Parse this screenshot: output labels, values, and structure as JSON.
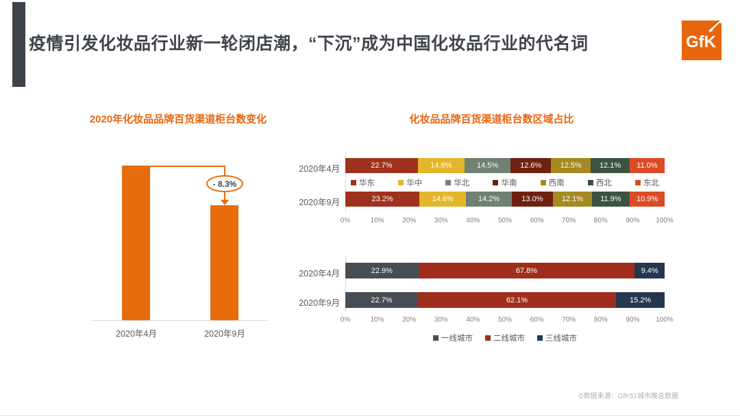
{
  "slide": {
    "title": "疫情引发化妆品行业新一轮闭店潮，“下沉”成为中国化妆品行业的代名词",
    "logo_text": "GfK",
    "footer": "©数据来源：GfK51城市推总数据",
    "accent_color": "#E66C0C",
    "title_color": "#3F444B"
  },
  "chart_data": [
    {
      "type": "bar",
      "title": "2020年化妆品品牌百货渠道柜台数变化",
      "categories": [
        "2020年4月",
        "2020年9月"
      ],
      "values": [
        null,
        null
      ],
      "change_pct": -8.3,
      "annotations": [
        "- 8.3%"
      ],
      "bar_color": "#E66C0C",
      "note": "absolute counter numbers not shown; only -8.3% change labeled"
    },
    {
      "type": "stacked-bar-horizontal",
      "title": "化妆品品牌百货渠道柜台数区域占比",
      "categories": [
        "2020年4月",
        "2020年9月"
      ],
      "series": [
        {
          "name": "华东",
          "color": "#A0311C",
          "values": [
            22.7,
            23.2
          ]
        },
        {
          "name": "华中",
          "color": "#E3B72B",
          "values": [
            14.6,
            14.6
          ]
        },
        {
          "name": "华北",
          "color": "#6F8171",
          "values": [
            14.5,
            14.2
          ]
        },
        {
          "name": "华南",
          "color": "#70200F",
          "values": [
            12.6,
            13.0
          ]
        },
        {
          "name": "西南",
          "color": "#A48A20",
          "values": [
            12.5,
            12.1
          ]
        },
        {
          "name": "西北",
          "color": "#3C5342",
          "values": [
            12.1,
            11.9
          ]
        },
        {
          "name": "东北",
          "color": "#DC4B26",
          "values": [
            11.0,
            10.9
          ]
        }
      ],
      "axis_ticks": [
        "0%",
        "10%",
        "20%",
        "30%",
        "40%",
        "50%",
        "60%",
        "70%",
        "80%",
        "90%",
        "100%"
      ],
      "xlim": [
        0,
        100
      ],
      "legend_position": "between-rows",
      "grid": false
    },
    {
      "type": "stacked-bar-horizontal",
      "title": "",
      "categories": [
        "2020年4月",
        "2020年9月"
      ],
      "series": [
        {
          "name": "一线城市",
          "color": "#474D55",
          "values": [
            22.9,
            22.7
          ]
        },
        {
          "name": "二线城市",
          "color": "#9E2E1B",
          "values": [
            67.8,
            62.1
          ]
        },
        {
          "name": "三线城市",
          "color": "#24374F",
          "values": [
            9.4,
            15.2
          ]
        }
      ],
      "axis_ticks": [
        "0%",
        "10%",
        "20%",
        "30%",
        "40%",
        "50%",
        "60%",
        "70%",
        "80%",
        "90%",
        "100%"
      ],
      "xlim": [
        0,
        100
      ],
      "legend_position": "bottom",
      "grid": false
    }
  ]
}
